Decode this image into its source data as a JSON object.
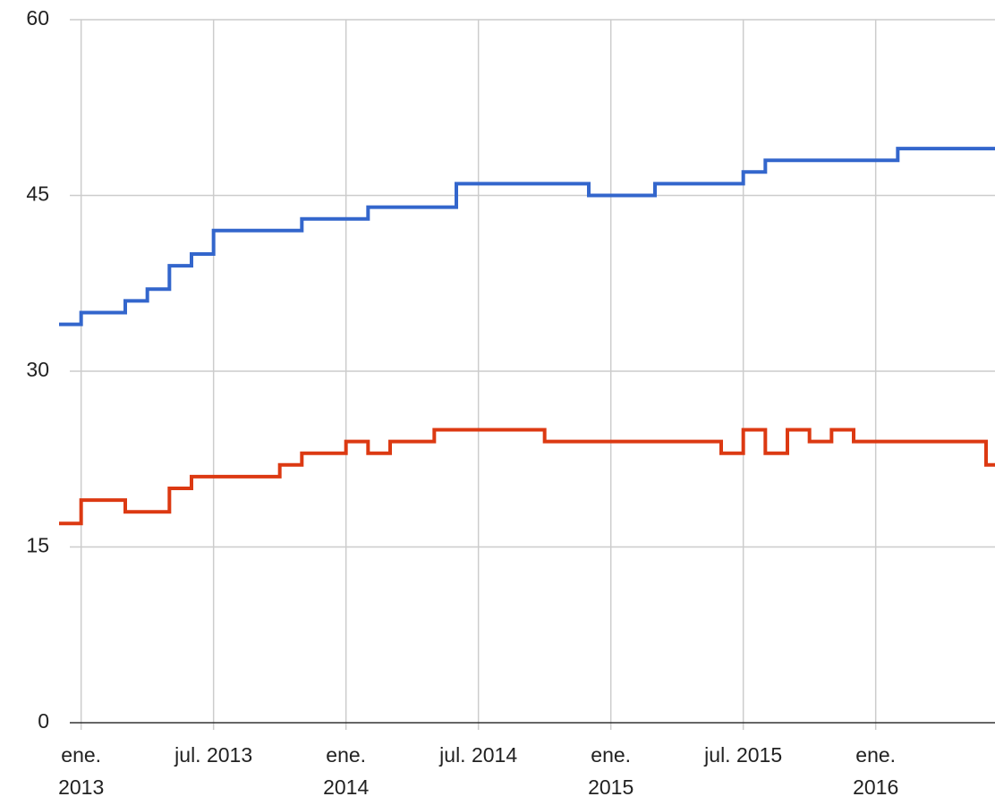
{
  "chart_data": {
    "type": "line",
    "step": true,
    "x": [
      "2012-12",
      "2013-01",
      "2013-02",
      "2013-03",
      "2013-04",
      "2013-05",
      "2013-06",
      "2013-07",
      "2013-08",
      "2013-09",
      "2013-10",
      "2013-11",
      "2013-12",
      "2014-01",
      "2014-02",
      "2014-03",
      "2014-04",
      "2014-05",
      "2014-06",
      "2014-07",
      "2014-08",
      "2014-09",
      "2014-10",
      "2014-11",
      "2014-12",
      "2015-01",
      "2015-02",
      "2015-03",
      "2015-04",
      "2015-05",
      "2015-06",
      "2015-07",
      "2015-08",
      "2015-09",
      "2015-10",
      "2015-11",
      "2015-12",
      "2016-01",
      "2016-02",
      "2016-03",
      "2016-04",
      "2016-05",
      "2016-06"
    ],
    "series": [
      {
        "color": "#3366cc",
        "values": [
          34,
          35,
          35,
          36,
          37,
          39,
          40,
          42,
          42,
          42,
          42,
          43,
          43,
          43,
          44,
          44,
          44,
          44,
          46,
          46,
          46,
          46,
          46,
          46,
          45,
          45,
          45,
          46,
          46,
          46,
          46,
          47,
          48,
          48,
          48,
          48,
          48,
          48,
          49,
          49,
          49,
          49,
          49
        ]
      },
      {
        "color": "#dc3912",
        "values": [
          17,
          19,
          19,
          18,
          18,
          20,
          21,
          21,
          21,
          21,
          22,
          23,
          23,
          24,
          23,
          24,
          24,
          25,
          25,
          25,
          25,
          25,
          24,
          24,
          24,
          24,
          24,
          24,
          24,
          24,
          23,
          25,
          23,
          25,
          24,
          25,
          24,
          24,
          24,
          24,
          24,
          24,
          22
        ]
      }
    ],
    "xlim": [
      "2012-12",
      "2016-06"
    ],
    "xticks": [
      {
        "value": "2013-01",
        "label": [
          "ene.",
          "2013"
        ]
      },
      {
        "value": "2013-07",
        "label": [
          "jul. 2013"
        ]
      },
      {
        "value": "2014-01",
        "label": [
          "ene.",
          "2014"
        ]
      },
      {
        "value": "2014-07",
        "label": [
          "jul. 2014"
        ]
      },
      {
        "value": "2015-01",
        "label": [
          "ene.",
          "2015"
        ]
      },
      {
        "value": "2015-07",
        "label": [
          "jul. 2015"
        ]
      },
      {
        "value": "2016-01",
        "label": [
          "ene.",
          "2016"
        ]
      }
    ],
    "ylim": [
      0,
      60
    ],
    "yticks": [
      0,
      15,
      30,
      45,
      60
    ],
    "grid": true
  }
}
